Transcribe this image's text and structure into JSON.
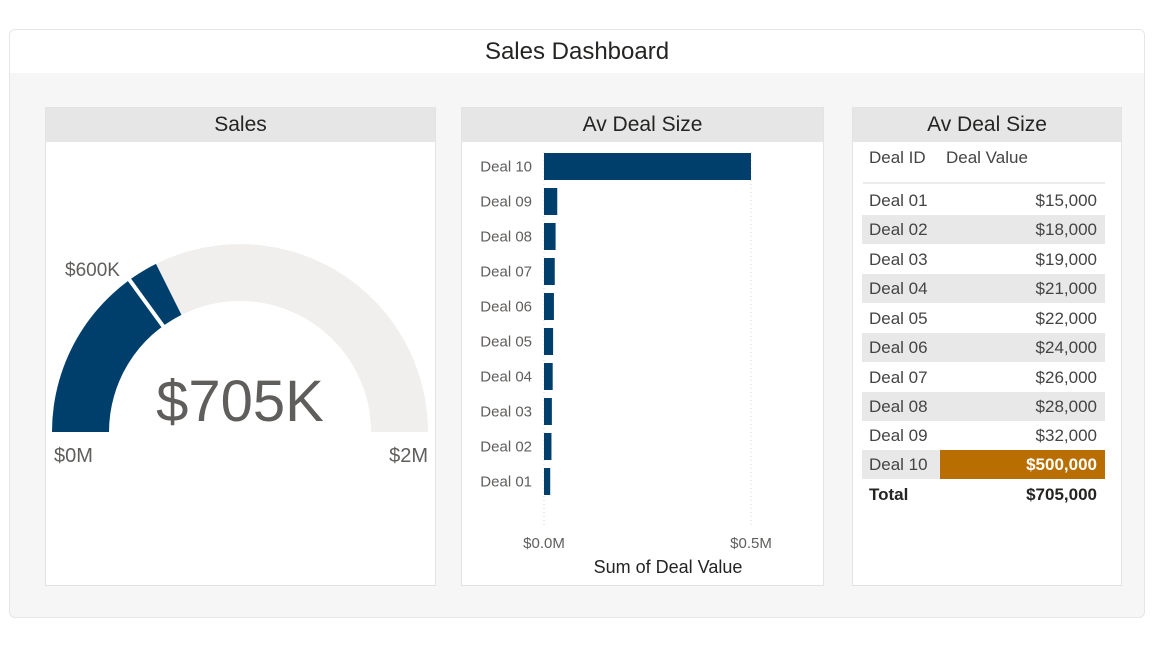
{
  "dashboard": {
    "title": "Sales Dashboard"
  },
  "gauge_card": {
    "title": "Sales",
    "value_label": "$705K",
    "min_label": "$0M",
    "max_label": "$2M",
    "target_label": "$600K"
  },
  "table_card": {
    "title": "Av Deal Size",
    "columns": [
      "Deal ID",
      "Deal Value"
    ],
    "rows": [
      {
        "id": "Deal 01",
        "value": "$15,000"
      },
      {
        "id": "Deal 02",
        "value": "$18,000"
      },
      {
        "id": "Deal 03",
        "value": "$19,000"
      },
      {
        "id": "Deal 04",
        "value": "$21,000"
      },
      {
        "id": "Deal 05",
        "value": "$22,000"
      },
      {
        "id": "Deal 06",
        "value": "$24,000"
      },
      {
        "id": "Deal 07",
        "value": "$26,000"
      },
      {
        "id": "Deal 08",
        "value": "$28,000"
      },
      {
        "id": "Deal 09",
        "value": "$32,000"
      },
      {
        "id": "Deal 10",
        "value": "$500,000"
      }
    ],
    "total_label": "Total",
    "total_value": "$705,000",
    "highlight_color": "#b86e00"
  },
  "chart_data": [
    {
      "type": "gauge",
      "title": "Sales",
      "value": 705000,
      "min": 0,
      "max": 2000000,
      "target": 600000,
      "value_label": "$705K",
      "min_label": "$0M",
      "max_label": "$2M",
      "target_label": "$600K",
      "fill_color": "#003f6b",
      "track_color": "#f0efed"
    },
    {
      "type": "bar",
      "orientation": "horizontal",
      "title": "Av Deal Size",
      "categories": [
        "Deal 10",
        "Deal 09",
        "Deal 08",
        "Deal 07",
        "Deal 06",
        "Deal 05",
        "Deal 04",
        "Deal 03",
        "Deal 02",
        "Deal 01"
      ],
      "values": [
        500000,
        32000,
        28000,
        26000,
        24000,
        22000,
        21000,
        19000,
        18000,
        15000
      ],
      "xlabel": "Sum of Deal Value",
      "ylabel": "",
      "xlim": [
        0,
        500000
      ],
      "xticks": [
        0,
        500000
      ],
      "xtick_labels": [
        "$0.0M",
        "$0.5M"
      ],
      "grid": "vertical dotted",
      "bar_color": "#003f6b"
    }
  ]
}
